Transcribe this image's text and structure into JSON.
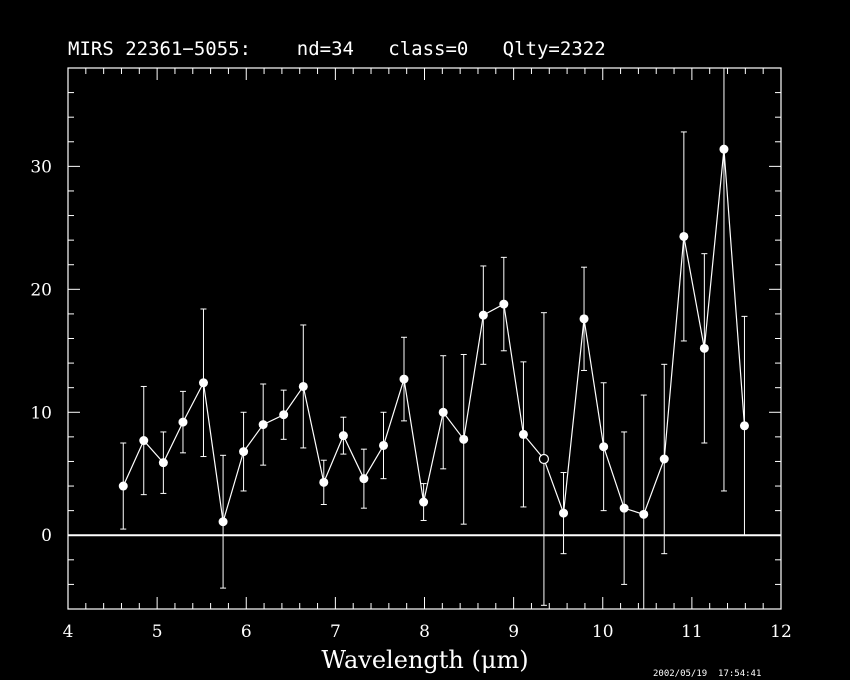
{
  "chart_data": {
    "type": "scatter",
    "title": "MIRS 22361−5055:    nd=34   class=0   Qlty=2322",
    "xlabel": "Wavelength (μm)",
    "ylabel": "",
    "xlim": [
      4,
      12
    ],
    "ylim": [
      -6,
      38
    ],
    "xticks": [
      "4",
      "5",
      "6",
      "7",
      "8",
      "9",
      "10",
      "11",
      "12"
    ],
    "yticks": [
      "0",
      "10",
      "20",
      "30"
    ],
    "zero_line": 0,
    "connected": true,
    "points": [
      {
        "x": 4.62,
        "y": 4.0,
        "err": 3.5,
        "open": false
      },
      {
        "x": 4.85,
        "y": 7.7,
        "err": 4.4,
        "open": false
      },
      {
        "x": 5.07,
        "y": 5.9,
        "err": 2.5,
        "open": false
      },
      {
        "x": 5.29,
        "y": 9.2,
        "err": 2.5,
        "open": false
      },
      {
        "x": 5.52,
        "y": 12.4,
        "err": 6.0,
        "open": false
      },
      {
        "x": 5.74,
        "y": 1.1,
        "err": 5.4,
        "open": false
      },
      {
        "x": 5.97,
        "y": 6.8,
        "err": 3.2,
        "open": false
      },
      {
        "x": 6.19,
        "y": 9.0,
        "err": 3.3,
        "open": false
      },
      {
        "x": 6.42,
        "y": 9.8,
        "err": 2.0,
        "open": false
      },
      {
        "x": 6.64,
        "y": 12.1,
        "err": 5.0,
        "open": false
      },
      {
        "x": 6.87,
        "y": 4.3,
        "err": 1.8,
        "open": false
      },
      {
        "x": 7.09,
        "y": 8.1,
        "err": 1.5,
        "open": false
      },
      {
        "x": 7.32,
        "y": 4.6,
        "err": 2.4,
        "open": false
      },
      {
        "x": 7.54,
        "y": 7.3,
        "err": 2.7,
        "open": false
      },
      {
        "x": 7.77,
        "y": 12.7,
        "err": 3.4,
        "open": false
      },
      {
        "x": 7.99,
        "y": 2.7,
        "err": 1.5,
        "open": false
      },
      {
        "x": 8.21,
        "y": 10.0,
        "err": 4.6,
        "open": false
      },
      {
        "x": 8.44,
        "y": 7.8,
        "err": 6.9,
        "open": false
      },
      {
        "x": 8.66,
        "y": 17.9,
        "err": 4.0,
        "open": false
      },
      {
        "x": 8.89,
        "y": 18.8,
        "err": 3.8,
        "open": false
      },
      {
        "x": 9.11,
        "y": 8.2,
        "err": 5.9,
        "open": false
      },
      {
        "x": 9.34,
        "y": 6.2,
        "err": 11.9,
        "open": true
      },
      {
        "x": 9.56,
        "y": 1.8,
        "err": 3.3,
        "open": false
      },
      {
        "x": 9.79,
        "y": 17.6,
        "err": 4.2,
        "open": false
      },
      {
        "x": 10.01,
        "y": 7.2,
        "err": 5.2,
        "open": false
      },
      {
        "x": 10.24,
        "y": 2.2,
        "err": 6.2,
        "open": false
      },
      {
        "x": 10.46,
        "y": 1.7,
        "err": 9.7,
        "open": false
      },
      {
        "x": 10.69,
        "y": 6.2,
        "err": 7.7,
        "open": false
      },
      {
        "x": 10.91,
        "y": 24.3,
        "err": 8.5,
        "open": false
      },
      {
        "x": 11.14,
        "y": 15.2,
        "err": 7.7,
        "open": false
      },
      {
        "x": 11.36,
        "y": 31.4,
        "err": 27.8,
        "open": false
      },
      {
        "x": 11.59,
        "y": 8.9,
        "err": 8.9,
        "open": false
      }
    ]
  },
  "timestamp": "2002/05/19  17:54:41",
  "colors": {
    "background": "#000000",
    "foreground": "#ffffff"
  }
}
